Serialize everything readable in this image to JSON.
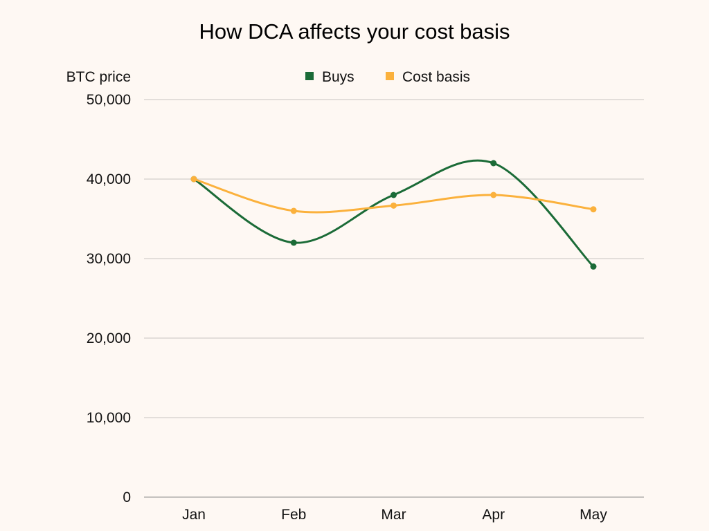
{
  "chart_data": {
    "type": "line",
    "title": "How DCA affects your cost basis",
    "ylabel": "BTC price",
    "xlabel": "",
    "categories": [
      "Jan",
      "Feb",
      "Mar",
      "Apr",
      "May"
    ],
    "ylim": [
      0,
      50000
    ],
    "yticks": [
      0,
      10000,
      20000,
      30000,
      40000,
      50000
    ],
    "ytick_labels": [
      "0",
      "10,000",
      "20,000",
      "30,000",
      "40,000",
      "50,000"
    ],
    "grid": true,
    "legend": "top-center",
    "smooth": true,
    "series": [
      {
        "name": "Buys",
        "color": "#1b6b37",
        "values": [
          40000,
          32000,
          38000,
          42000,
          29000
        ]
      },
      {
        "name": "Cost basis",
        "color": "#fbb13c",
        "values": [
          40000,
          36000,
          36667,
          38000,
          36200
        ]
      }
    ]
  }
}
